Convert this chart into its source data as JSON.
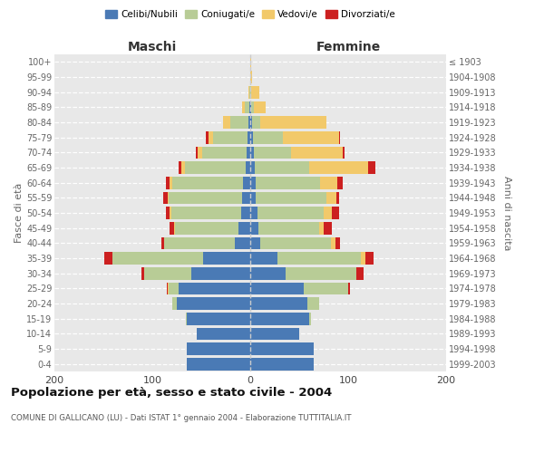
{
  "age_groups": [
    "0-4",
    "5-9",
    "10-14",
    "15-19",
    "20-24",
    "25-29",
    "30-34",
    "35-39",
    "40-44",
    "45-49",
    "50-54",
    "55-59",
    "60-64",
    "65-69",
    "70-74",
    "75-79",
    "80-84",
    "85-89",
    "90-94",
    "95-99",
    "100+"
  ],
  "birth_years": [
    "1999-2003",
    "1994-1998",
    "1989-1993",
    "1984-1988",
    "1979-1983",
    "1974-1978",
    "1969-1973",
    "1964-1968",
    "1959-1963",
    "1954-1958",
    "1949-1953",
    "1944-1948",
    "1939-1943",
    "1934-1938",
    "1929-1933",
    "1924-1928",
    "1919-1923",
    "1914-1918",
    "1909-1913",
    "1904-1908",
    "≤ 1903"
  ],
  "males_celibi": [
    65,
    65,
    55,
    65,
    75,
    73,
    60,
    48,
    16,
    12,
    9,
    8,
    7,
    5,
    4,
    3,
    2,
    1,
    0,
    0,
    0
  ],
  "males_coniugati": [
    0,
    0,
    0,
    1,
    5,
    10,
    48,
    93,
    72,
    65,
    72,
    75,
    73,
    62,
    45,
    35,
    18,
    5,
    1,
    0,
    0
  ],
  "males_vedovi": [
    0,
    0,
    0,
    0,
    0,
    1,
    0,
    0,
    0,
    1,
    1,
    1,
    2,
    3,
    5,
    5,
    8,
    2,
    1,
    0,
    0
  ],
  "males_divorziati": [
    0,
    0,
    0,
    0,
    0,
    1,
    3,
    8,
    3,
    4,
    4,
    5,
    4,
    3,
    2,
    2,
    0,
    0,
    0,
    0,
    0
  ],
  "females_nubili": [
    65,
    65,
    50,
    60,
    58,
    55,
    36,
    28,
    10,
    8,
    7,
    6,
    6,
    5,
    4,
    3,
    2,
    1,
    0,
    0,
    0
  ],
  "females_coniugate": [
    0,
    0,
    0,
    2,
    12,
    45,
    72,
    85,
    72,
    62,
    68,
    72,
    65,
    55,
    38,
    30,
    8,
    3,
    1,
    0,
    0
  ],
  "females_vedove": [
    0,
    0,
    0,
    0,
    0,
    0,
    0,
    5,
    5,
    5,
    8,
    10,
    18,
    60,
    52,
    58,
    68,
    12,
    8,
    2,
    1
  ],
  "females_divorziate": [
    0,
    0,
    0,
    0,
    0,
    2,
    8,
    8,
    5,
    8,
    8,
    3,
    5,
    8,
    2,
    1,
    0,
    0,
    0,
    0,
    0
  ],
  "color_celibi": "#4a7ab5",
  "color_coniugati": "#b8cc96",
  "color_vedovi": "#f2c96a",
  "color_divorziati": "#cc2020",
  "xlim": 200,
  "title": "Popolazione per età, sesso e stato civile - 2004",
  "subtitle": "COMUNE DI GALLICANO (LU) - Dati ISTAT 1° gennaio 2004 - Elaborazione TUTTITALIA.IT",
  "ylabel_left": "Fasce di età",
  "ylabel_right": "Anni di nascita",
  "xlabel_left": "Maschi",
  "xlabel_right": "Femmine",
  "legend_labels": [
    "Celibi/Nubili",
    "Coniugati/e",
    "Vedovi/e",
    "Divorziati/e"
  ]
}
